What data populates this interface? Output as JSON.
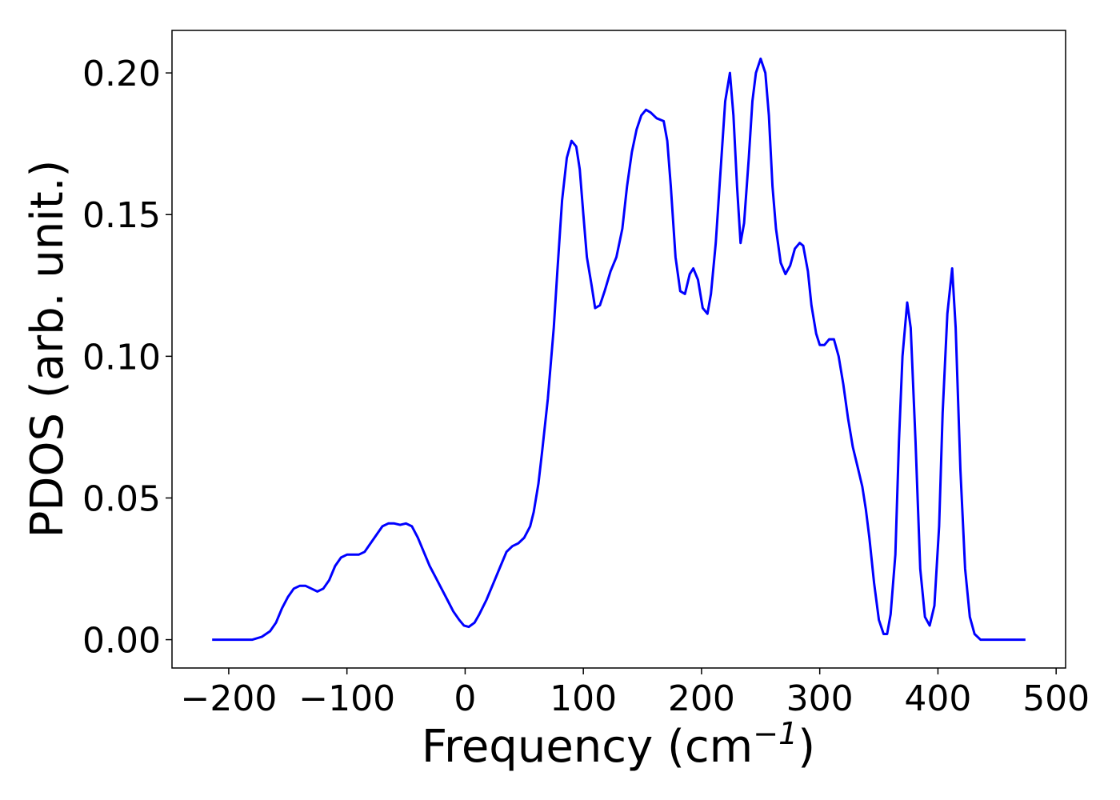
{
  "chart_data": {
    "type": "line",
    "title": "",
    "xlabel": "Frequency (cm",
    "xlabel_sup": "−1",
    "xlabel_close": ")",
    "ylabel": "PDOS (arb. unit.)",
    "xlim": [
      -248,
      508
    ],
    "ylim": [
      -0.01,
      0.215
    ],
    "x_ticks": [
      -200,
      -100,
      0,
      100,
      200,
      300,
      400,
      500
    ],
    "x_tick_labels": [
      "−200",
      "−100",
      "0",
      "100",
      "200",
      "300",
      "400",
      "500"
    ],
    "y_ticks": [
      0.0,
      0.05,
      0.1,
      0.15,
      0.2
    ],
    "y_tick_labels": [
      "0.00",
      "0.05",
      "0.10",
      "0.15",
      "0.20"
    ],
    "grid": false,
    "colors": {
      "line": "#0000ff",
      "axes": "#000000",
      "background": "#ffffff"
    },
    "series": [
      {
        "x": [
          -214,
          -180,
          -172,
          -165,
          -160,
          -155,
          -150,
          -145,
          -140,
          -135,
          -130,
          -125,
          -120,
          -115,
          -110,
          -105,
          -100,
          -95,
          -90,
          -85,
          -80,
          -75,
          -70,
          -65,
          -60,
          -55,
          -50,
          -45,
          -40,
          -35,
          -30,
          -25,
          -20,
          -15,
          -10,
          -5,
          -1,
          3,
          8,
          12,
          18,
          24,
          30,
          35,
          40,
          45,
          50,
          55,
          58,
          62,
          65,
          70,
          75,
          78,
          82,
          86,
          90,
          94,
          97,
          100,
          103,
          107,
          110,
          114,
          118,
          123,
          128,
          133,
          137,
          141,
          145,
          149,
          153,
          157,
          162,
          168,
          171,
          174,
          178,
          182,
          186,
          190,
          193,
          197,
          201,
          205,
          208,
          212,
          216,
          220,
          224,
          227,
          230,
          233,
          236,
          240,
          243,
          246,
          250,
          254,
          257,
          260,
          263,
          267,
          271,
          275,
          279,
          283,
          286,
          290,
          293,
          297,
          300,
          304,
          308,
          312,
          316,
          320,
          324,
          328,
          332,
          336,
          339,
          342,
          346,
          350,
          354,
          357,
          360,
          364,
          367,
          370,
          374,
          377,
          381,
          385,
          389,
          393,
          397,
          401,
          404,
          408,
          412,
          415,
          419,
          423,
          427,
          431,
          436,
          445,
          474
        ],
        "values": [
          0.0,
          0.0,
          0.001,
          0.003,
          0.006,
          0.011,
          0.015,
          0.018,
          0.019,
          0.019,
          0.018,
          0.017,
          0.018,
          0.021,
          0.026,
          0.029,
          0.03,
          0.03,
          0.03,
          0.031,
          0.034,
          0.037,
          0.04,
          0.041,
          0.041,
          0.0405,
          0.041,
          0.04,
          0.036,
          0.031,
          0.026,
          0.022,
          0.018,
          0.014,
          0.01,
          0.007,
          0.005,
          0.0045,
          0.006,
          0.009,
          0.014,
          0.02,
          0.026,
          0.031,
          0.033,
          0.034,
          0.036,
          0.04,
          0.045,
          0.055,
          0.066,
          0.085,
          0.11,
          0.13,
          0.155,
          0.17,
          0.176,
          0.174,
          0.166,
          0.15,
          0.135,
          0.125,
          0.117,
          0.118,
          0.123,
          0.13,
          0.135,
          0.145,
          0.16,
          0.172,
          0.18,
          0.185,
          0.187,
          0.186,
          0.184,
          0.183,
          0.176,
          0.16,
          0.135,
          0.123,
          0.122,
          0.129,
          0.131,
          0.127,
          0.117,
          0.115,
          0.122,
          0.14,
          0.165,
          0.19,
          0.2,
          0.185,
          0.16,
          0.14,
          0.147,
          0.17,
          0.19,
          0.2,
          0.205,
          0.2,
          0.185,
          0.16,
          0.145,
          0.133,
          0.129,
          0.132,
          0.138,
          0.14,
          0.139,
          0.13,
          0.118,
          0.108,
          0.104,
          0.104,
          0.106,
          0.106,
          0.1,
          0.09,
          0.078,
          0.068,
          0.061,
          0.054,
          0.046,
          0.036,
          0.02,
          0.007,
          0.002,
          0.002,
          0.009,
          0.03,
          0.07,
          0.1,
          0.119,
          0.11,
          0.07,
          0.025,
          0.008,
          0.005,
          0.012,
          0.04,
          0.08,
          0.115,
          0.131,
          0.11,
          0.06,
          0.025,
          0.008,
          0.002,
          0.0,
          0.0,
          0.0
        ]
      }
    ]
  }
}
